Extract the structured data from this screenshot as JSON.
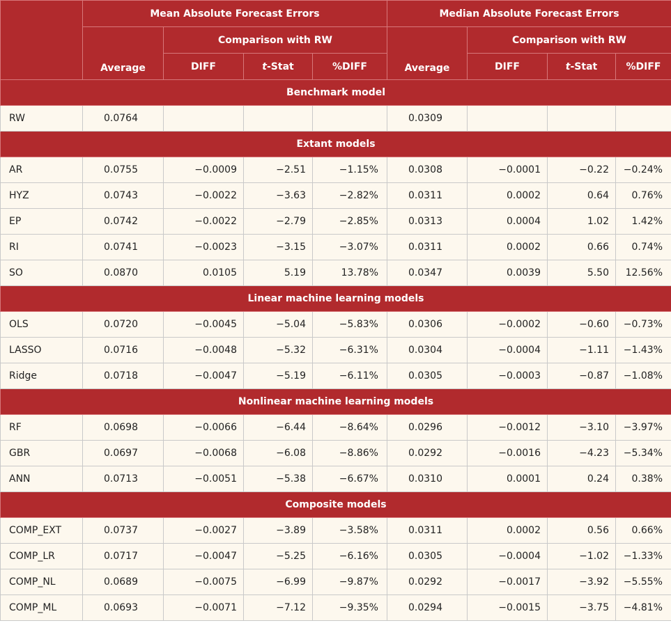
{
  "headers": {
    "mean_group": "Mean Absolute Forecast Errors",
    "median_group": "Median Absolute Forecast Errors",
    "comparison": "Comparison with RW",
    "average": "Average",
    "diff": "DIFF",
    "tstat_t": "t",
    "tstat_rest": "-Stat",
    "pct_diff": "%DIFF"
  },
  "sections": [
    {
      "title": "Benchmark model",
      "rows": [
        {
          "model": "RW",
          "mean_avg": "0.0764",
          "mean_diff": "",
          "mean_t": "",
          "mean_pct": "",
          "med_avg": "0.0309",
          "med_diff": "",
          "med_t": "",
          "med_pct": ""
        }
      ]
    },
    {
      "title": "Extant models",
      "rows": [
        {
          "model": "AR",
          "mean_avg": "0.0755",
          "mean_diff": "−0.0009",
          "mean_t": "−2.51",
          "mean_pct": "−1.15%",
          "med_avg": "0.0308",
          "med_diff": "−0.0001",
          "med_t": "−0.22",
          "med_pct": "−0.24%"
        },
        {
          "model": "HYZ",
          "mean_avg": "0.0743",
          "mean_diff": "−0.0022",
          "mean_t": "−3.63",
          "mean_pct": "−2.82%",
          "med_avg": "0.0311",
          "med_diff": "0.0002",
          "med_t": "0.64",
          "med_pct": "0.76%"
        },
        {
          "model": "EP",
          "mean_avg": "0.0742",
          "mean_diff": "−0.0022",
          "mean_t": "−2.79",
          "mean_pct": "−2.85%",
          "med_avg": "0.0313",
          "med_diff": "0.0004",
          "med_t": "1.02",
          "med_pct": "1.42%"
        },
        {
          "model": "RI",
          "mean_avg": "0.0741",
          "mean_diff": "−0.0023",
          "mean_t": "−3.15",
          "mean_pct": "−3.07%",
          "med_avg": "0.0311",
          "med_diff": "0.0002",
          "med_t": "0.66",
          "med_pct": "0.74%"
        },
        {
          "model": "SO",
          "mean_avg": "0.0870",
          "mean_diff": "0.0105",
          "mean_t": "5.19",
          "mean_pct": "13.78%",
          "med_avg": "0.0347",
          "med_diff": "0.0039",
          "med_t": "5.50",
          "med_pct": "12.56%"
        }
      ]
    },
    {
      "title": "Linear machine learning models",
      "rows": [
        {
          "model": "OLS",
          "mean_avg": "0.0720",
          "mean_diff": "−0.0045",
          "mean_t": "−5.04",
          "mean_pct": "−5.83%",
          "med_avg": "0.0306",
          "med_diff": "−0.0002",
          "med_t": "−0.60",
          "med_pct": "−0.73%"
        },
        {
          "model": "LASSO",
          "mean_avg": "0.0716",
          "mean_diff": "−0.0048",
          "mean_t": "−5.32",
          "mean_pct": "−6.31%",
          "med_avg": "0.0304",
          "med_diff": "−0.0004",
          "med_t": "−1.11",
          "med_pct": "−1.43%"
        },
        {
          "model": "Ridge",
          "mean_avg": "0.0718",
          "mean_diff": "−0.0047",
          "mean_t": "−5.19",
          "mean_pct": "−6.11%",
          "med_avg": "0.0305",
          "med_diff": "−0.0003",
          "med_t": "−0.87",
          "med_pct": "−1.08%"
        }
      ]
    },
    {
      "title": "Nonlinear machine learning models",
      "rows": [
        {
          "model": "RF",
          "mean_avg": "0.0698",
          "mean_diff": "−0.0066",
          "mean_t": "−6.44",
          "mean_pct": "−8.64%",
          "med_avg": "0.0296",
          "med_diff": "−0.0012",
          "med_t": "−3.10",
          "med_pct": "−3.97%"
        },
        {
          "model": "GBR",
          "mean_avg": "0.0697",
          "mean_diff": "−0.0068",
          "mean_t": "−6.08",
          "mean_pct": "−8.86%",
          "med_avg": "0.0292",
          "med_diff": "−0.0016",
          "med_t": "−4.23",
          "med_pct": "−5.34%"
        },
        {
          "model": "ANN",
          "mean_avg": "0.0713",
          "mean_diff": "−0.0051",
          "mean_t": "−5.38",
          "mean_pct": "−6.67%",
          "med_avg": "0.0310",
          "med_diff": "0.0001",
          "med_t": "0.24",
          "med_pct": "0.38%"
        }
      ]
    },
    {
      "title": "Composite models",
      "rows": [
        {
          "model": "COMP_EXT",
          "mean_avg": "0.0737",
          "mean_diff": "−0.0027",
          "mean_t": "−3.89",
          "mean_pct": "−3.58%",
          "med_avg": "0.0311",
          "med_diff": "0.0002",
          "med_t": "0.56",
          "med_pct": "0.66%"
        },
        {
          "model": "COMP_LR",
          "mean_avg": "0.0717",
          "mean_diff": "−0.0047",
          "mean_t": "−5.25",
          "mean_pct": "−6.16%",
          "med_avg": "0.0305",
          "med_diff": "−0.0004",
          "med_t": "−1.02",
          "med_pct": "−1.33%"
        },
        {
          "model": "COMP_NL",
          "mean_avg": "0.0689",
          "mean_diff": "−0.0075",
          "mean_t": "−6.99",
          "mean_pct": "−9.87%",
          "med_avg": "0.0292",
          "med_diff": "−0.0017",
          "med_t": "−3.92",
          "med_pct": "−5.55%"
        },
        {
          "model": "COMP_ML",
          "mean_avg": "0.0693",
          "mean_diff": "−0.0071",
          "mean_t": "−7.12",
          "mean_pct": "−9.35%",
          "med_avg": "0.0294",
          "med_diff": "−0.0015",
          "med_t": "−3.75",
          "med_pct": "−4.81%"
        }
      ]
    }
  ],
  "colors": {
    "header_red": "#b12a2d",
    "row_cream": "#fdf8ee",
    "grid": "#c9c9c9"
  }
}
